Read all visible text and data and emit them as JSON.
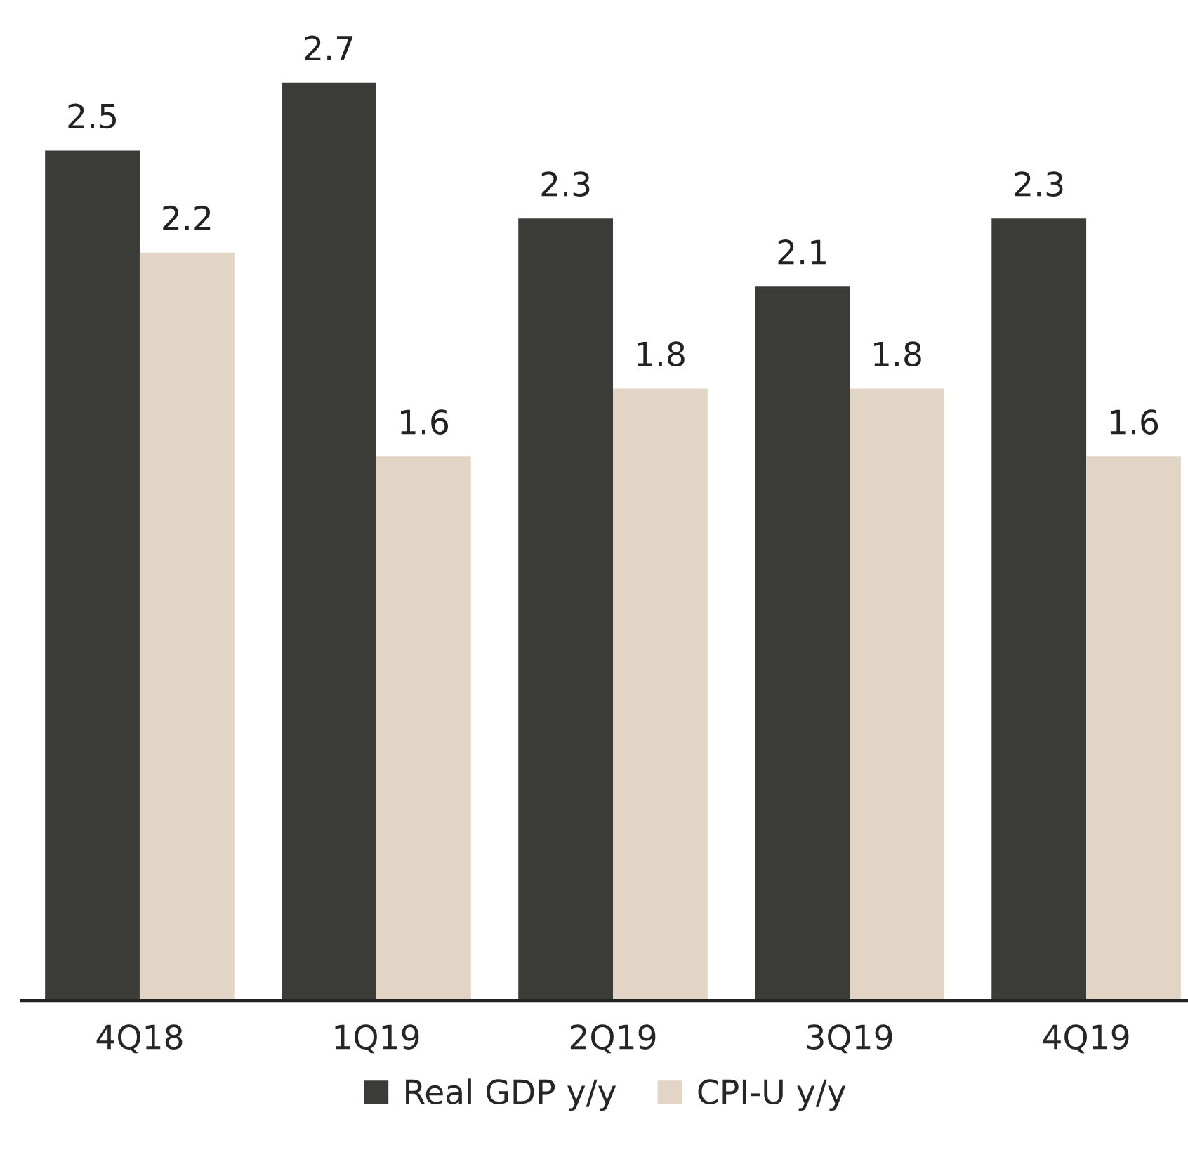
{
  "chart_data": {
    "type": "bar",
    "categories": [
      "4Q18",
      "1Q19",
      "2Q19",
      "3Q19",
      "4Q19"
    ],
    "series": [
      {
        "name": "Real GDP y/y",
        "color": "#3b3c37",
        "values": [
          2.5,
          2.7,
          2.3,
          2.1,
          2.3
        ]
      },
      {
        "name": "CPI-U y/y",
        "color": "#e2d5c5",
        "values": [
          2.2,
          1.6,
          1.8,
          1.8,
          1.6
        ]
      }
    ],
    "data_labels": true,
    "legend": "bottom",
    "grid": false
  }
}
